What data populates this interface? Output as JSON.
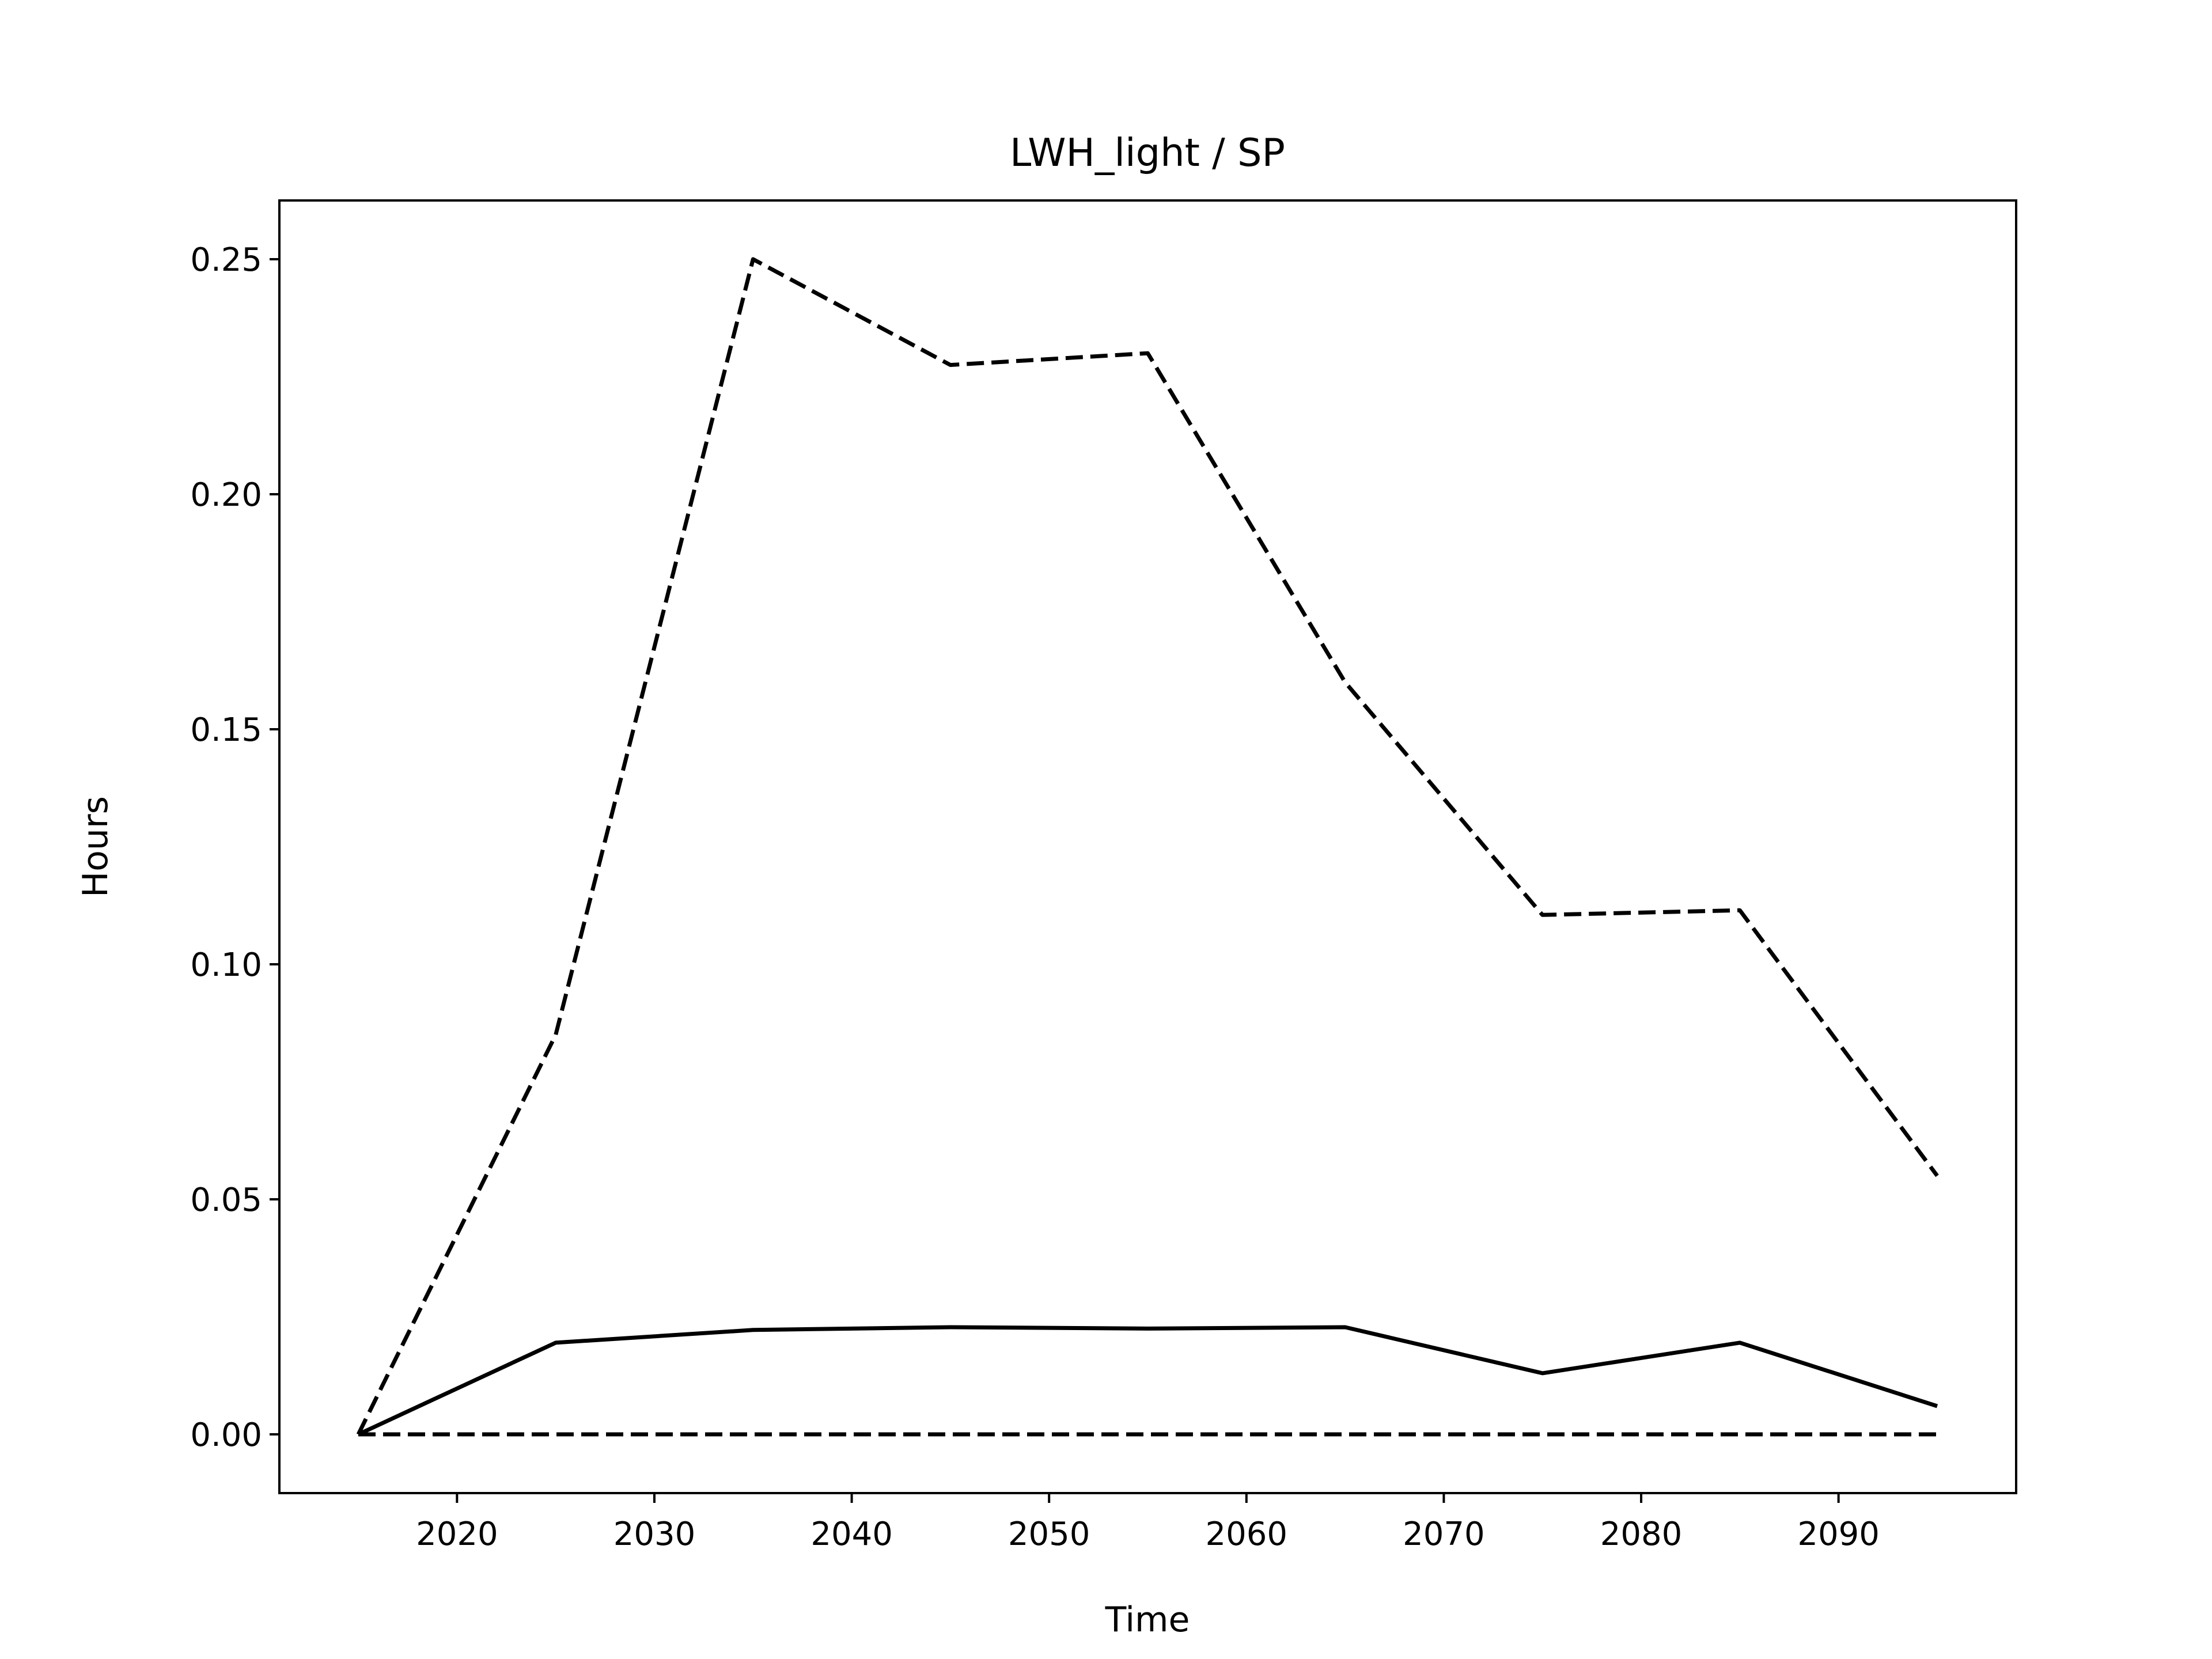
{
  "chart_data": {
    "type": "line",
    "title": "LWH_light / SP",
    "xlabel": "Time",
    "ylabel": "Hours",
    "xlim": [
      2011,
      2099
    ],
    "ylim": [
      -0.0125,
      0.2625
    ],
    "xticks": [
      2020,
      2030,
      2040,
      2050,
      2060,
      2070,
      2080,
      2090
    ],
    "yticks": [
      0.0,
      0.05,
      0.1,
      0.15,
      0.2,
      0.25
    ],
    "xtick_labels": [
      "2020",
      "2030",
      "2040",
      "2050",
      "2060",
      "2070",
      "2080",
      "2090"
    ],
    "ytick_labels": [
      "0.00",
      "0.05",
      "0.10",
      "0.15",
      "0.20",
      "0.25"
    ],
    "grid": false,
    "legend": "none",
    "x": [
      2015,
      2025,
      2035,
      2045,
      2055,
      2065,
      2075,
      2085,
      2095
    ],
    "series": [
      {
        "values": [
          0.0,
          0.085,
          0.25,
          0.2275,
          0.23,
          0.16,
          0.1105,
          0.1115,
          0.055
        ],
        "style": "dashed",
        "color": "#000000"
      },
      {
        "values": [
          0.0,
          0.0195,
          0.0222,
          0.0228,
          0.0225,
          0.0228,
          0.013,
          0.0195,
          0.006
        ],
        "style": "solid",
        "color": "#000000"
      },
      {
        "values": [
          0.0,
          0.0,
          0.0,
          0.0,
          0.0,
          0.0,
          0.0,
          0.0,
          0.0
        ],
        "style": "dashed",
        "color": "#000000"
      }
    ]
  }
}
